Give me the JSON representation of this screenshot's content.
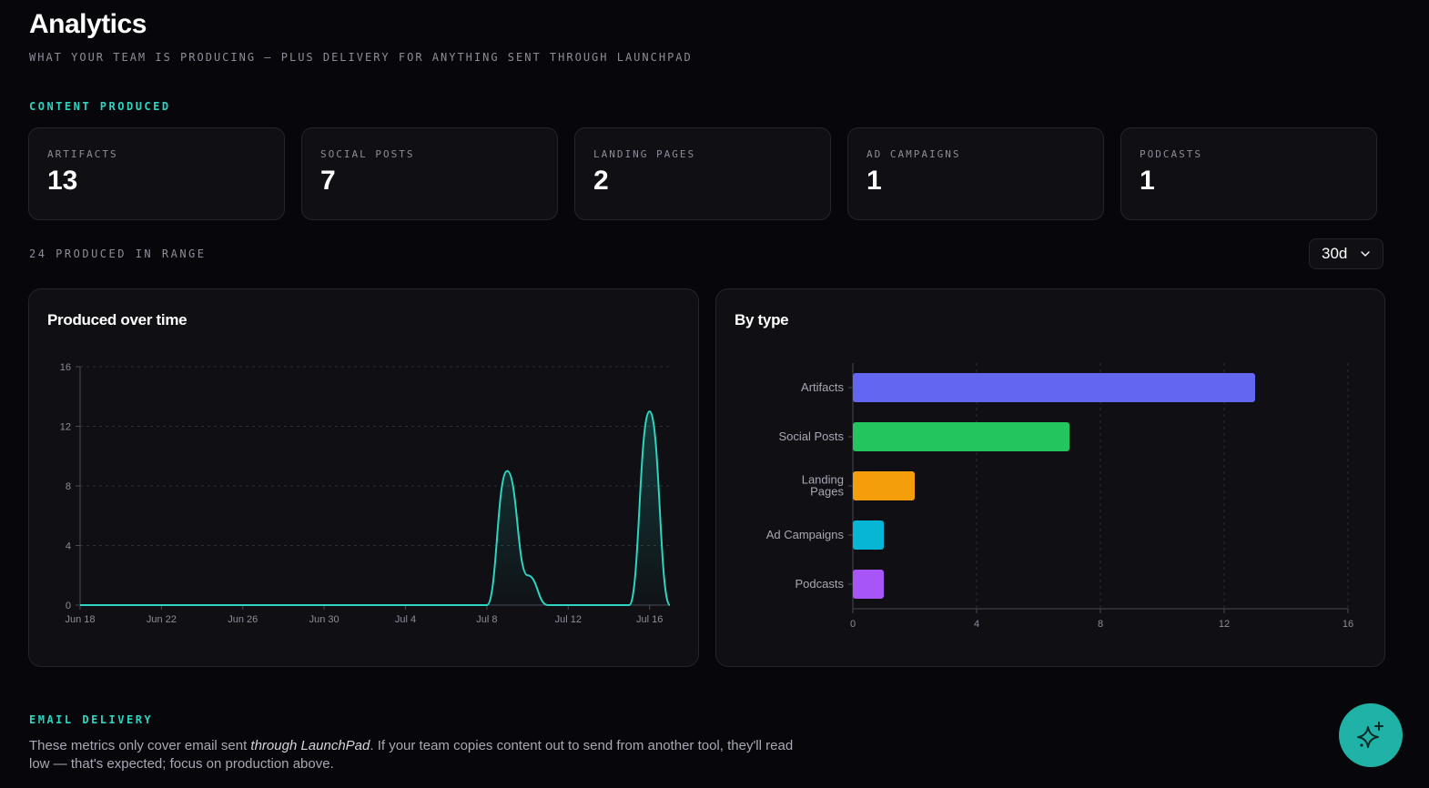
{
  "header": {
    "title": "Analytics",
    "subtitle": "WHAT YOUR TEAM IS PRODUCING — PLUS DELIVERY FOR ANYTHING SENT THROUGH LAUNCHPAD"
  },
  "content_section": {
    "label": "CONTENT PRODUCED",
    "kpis": [
      {
        "label": "ARTIFACTS",
        "value": "13"
      },
      {
        "label": "SOCIAL POSTS",
        "value": "7"
      },
      {
        "label": "LANDING PAGES",
        "value": "2"
      },
      {
        "label": "AD CAMPAIGNS",
        "value": "1"
      },
      {
        "label": "PODCASTS",
        "value": "1"
      }
    ],
    "range_summary": "24 PRODUCED IN RANGE",
    "range_select": {
      "value": "30d",
      "icon": "chevron-down-icon"
    }
  },
  "line_panel": {
    "title": "Produced over time"
  },
  "bar_panel": {
    "title": "By type"
  },
  "email_section": {
    "label": "EMAIL DELIVERY",
    "note_before": "These metrics only cover email sent ",
    "note_emphasis": "through LaunchPad",
    "note_after": ". If your team copies content out to send from another tool, they'll read low — that's expected; focus on production above."
  },
  "fab": {
    "icon": "sparkles-icon"
  },
  "colors": {
    "accent": "#2dd4bf",
    "line": "#2dd4bf",
    "bars": [
      "#6366f1",
      "#22c55e",
      "#f59e0b",
      "#06b6d4",
      "#a855f7"
    ]
  },
  "chart_data": [
    {
      "type": "area",
      "title": "Produced over time",
      "xlabel": "",
      "ylabel": "",
      "x_ticks": [
        "Jun 18",
        "Jun 22",
        "Jun 26",
        "Jun 30",
        "Jul 4",
        "Jul 8",
        "Jul 12",
        "Jul 16"
      ],
      "ylim": [
        0,
        16
      ],
      "y_ticks": [
        0,
        4,
        8,
        12,
        16
      ],
      "grid": true,
      "series": [
        {
          "x": [
            "Jun 18",
            "Jun 19",
            "Jun 20",
            "Jun 21",
            "Jun 22",
            "Jun 23",
            "Jun 24",
            "Jun 25",
            "Jun 26",
            "Jun 27",
            "Jun 28",
            "Jun 29",
            "Jun 30",
            "Jul 1",
            "Jul 2",
            "Jul 3",
            "Jul 4",
            "Jul 5",
            "Jul 6",
            "Jul 7",
            "Jul 8",
            "Jul 9",
            "Jul 10",
            "Jul 11",
            "Jul 12",
            "Jul 13",
            "Jul 14",
            "Jul 15",
            "Jul 16",
            "Jul 17"
          ],
          "y": [
            0,
            0,
            0,
            0,
            0,
            0,
            0,
            0,
            0,
            0,
            0,
            0,
            0,
            0,
            0,
            0,
            0,
            0,
            0,
            0,
            0,
            9,
            2,
            0,
            0,
            0,
            0,
            0,
            13,
            0
          ]
        }
      ]
    },
    {
      "type": "bar",
      "orientation": "horizontal",
      "title": "By type",
      "categories": [
        "Artifacts",
        "Social Posts",
        "Landing Pages",
        "Ad Campaigns",
        "Podcasts"
      ],
      "values": [
        13,
        7,
        2,
        1,
        1
      ],
      "xlim": [
        0,
        16
      ],
      "x_ticks": [
        0,
        4,
        8,
        12,
        16
      ],
      "grid": true
    }
  ]
}
